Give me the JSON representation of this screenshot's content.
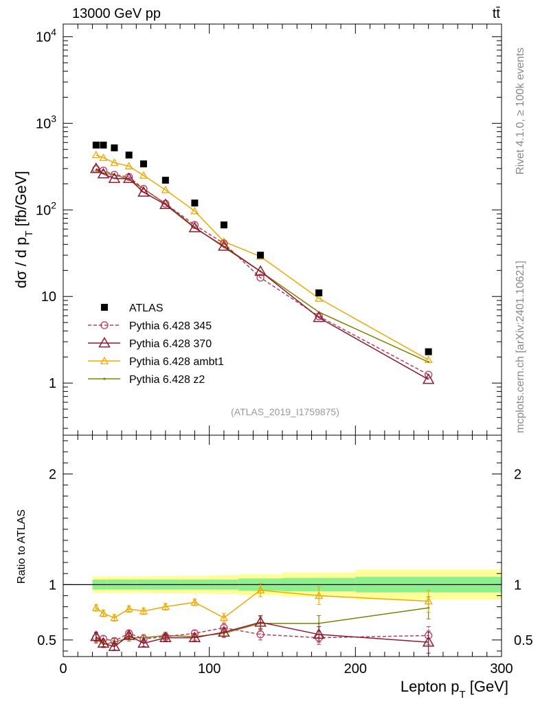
{
  "header": {
    "left": "13000 GeV pp",
    "right": "tt̄"
  },
  "side_labels": {
    "rivet": "Rivet 4.1.0, ≥ 100k events",
    "mcplots": "mcplots.cern.ch [arXiv:2401.10621]"
  },
  "reference": "(ATLAS_2019_I1759875)",
  "colors": {
    "atlas": "#000000",
    "p345": "#b83a5e",
    "p370": "#8b1a2e",
    "ambt1": "#f0a800",
    "z2": "#808000",
    "band_inner": "#8cf08c",
    "band_outer": "#ffff99"
  },
  "chart_data": [
    {
      "type": "scatter",
      "panel": "main",
      "title": "",
      "xlabel": "",
      "ylabel": "dσ / d p_T [fb/GeV]",
      "yscale": "log",
      "ylim": [
        0.25,
        14000
      ],
      "xlim": [
        0,
        300
      ],
      "y_ticks": [
        {
          "value": 1,
          "label": "1"
        },
        {
          "value": 10,
          "label": "10"
        },
        {
          "value": 100,
          "label": "10^2"
        },
        {
          "value": 1000,
          "label": "10^3"
        },
        {
          "value": 10000,
          "label": "10^4"
        }
      ],
      "legend": [
        {
          "key": "atlas",
          "label": "ATLAS"
        },
        {
          "key": "p345",
          "label": "Pythia 6.428 345"
        },
        {
          "key": "p370",
          "label": "Pythia 6.428 370"
        },
        {
          "key": "ambt1",
          "label": "Pythia 6.428 ambt1"
        },
        {
          "key": "z2",
          "label": "Pythia 6.428 z2"
        }
      ],
      "legend_placement": "bottom-left",
      "x": [
        22.5,
        27.5,
        35,
        45,
        55,
        70,
        90,
        110,
        135,
        175,
        250
      ],
      "series": [
        {
          "name": "ATLAS",
          "key": "atlas",
          "values": [
            560,
            560,
            520,
            430,
            340,
            220,
            120,
            67,
            30,
            11,
            2.3
          ]
        },
        {
          "name": "Pythia 6.428 345",
          "key": "p345",
          "values": [
            295,
            285,
            255,
            240,
            175,
            118,
            67,
            41,
            16.5,
            5.9,
            1.25
          ]
        },
        {
          "name": "Pythia 6.428 370",
          "key": "p370",
          "values": [
            300,
            260,
            230,
            230,
            160,
            115,
            62,
            38,
            19.5,
            5.7,
            1.1
          ]
        },
        {
          "name": "Pythia 6.428 ambt1",
          "key": "ambt1",
          "values": [
            430,
            400,
            350,
            320,
            250,
            170,
            97,
            43,
            29,
            9.5,
            1.85
          ]
        },
        {
          "name": "Pythia 6.428 z2",
          "key": "z2",
          "values": [
            285,
            265,
            255,
            225,
            175,
            118,
            63,
            37,
            19.5,
            6.6,
            1.75
          ]
        }
      ]
    },
    {
      "type": "line",
      "panel": "ratio",
      "xlabel": "Lepton p_T [GeV]",
      "ylabel": "Ratio to ATLAS",
      "ylim": [
        0.35,
        2.35
      ],
      "xlim": [
        0,
        300
      ],
      "x_ticks": [
        0,
        100,
        200,
        300
      ],
      "y_ticks": [
        0.5,
        1,
        2
      ],
      "x": [
        22.5,
        27.5,
        35,
        45,
        55,
        70,
        90,
        110,
        135,
        175,
        250
      ],
      "bands": [
        {
          "x0": 20,
          "x1": 25,
          "inner": 0.045,
          "outer": 0.075
        },
        {
          "x0": 25,
          "x1": 30,
          "inner": 0.045,
          "outer": 0.075
        },
        {
          "x0": 30,
          "x1": 40,
          "inner": 0.045,
          "outer": 0.075
        },
        {
          "x0": 40,
          "x1": 50,
          "inner": 0.045,
          "outer": 0.075
        },
        {
          "x0": 50,
          "x1": 60,
          "inner": 0.045,
          "outer": 0.075
        },
        {
          "x0": 60,
          "x1": 80,
          "inner": 0.045,
          "outer": 0.078
        },
        {
          "x0": 80,
          "x1": 100,
          "inner": 0.045,
          "outer": 0.08
        },
        {
          "x0": 100,
          "x1": 120,
          "inner": 0.045,
          "outer": 0.085
        },
        {
          "x0": 120,
          "x1": 150,
          "inner": 0.055,
          "outer": 0.095
        },
        {
          "x0": 150,
          "x1": 200,
          "inner": 0.06,
          "outer": 0.11
        },
        {
          "x0": 200,
          "x1": 300,
          "inner": 0.07,
          "outer": 0.135
        }
      ],
      "series": [
        {
          "name": "Pythia 6.428 345",
          "key": "p345",
          "values": [
            0.52,
            0.51,
            0.49,
            0.56,
            0.51,
            0.53,
            0.56,
            0.61,
            0.55,
            0.52,
            0.54
          ],
          "errors": [
            0.04,
            0.03,
            0.03,
            0.03,
            0.03,
            0.03,
            0.03,
            0.04,
            0.05,
            0.06,
            0.08
          ]
        },
        {
          "name": "Pythia 6.428 370",
          "key": "p370",
          "values": [
            0.53,
            0.47,
            0.44,
            0.54,
            0.47,
            0.52,
            0.52,
            0.57,
            0.66,
            0.55,
            0.48
          ],
          "errors": [
            0.04,
            0.03,
            0.03,
            0.03,
            0.03,
            0.03,
            0.03,
            0.04,
            0.06,
            0.07,
            0.1
          ]
        },
        {
          "name": "Pythia 6.428 ambt1",
          "key": "ambt1",
          "values": [
            0.79,
            0.74,
            0.7,
            0.78,
            0.76,
            0.8,
            0.84,
            0.7,
            0.95,
            0.9,
            0.85
          ],
          "errors": [
            0.03,
            0.03,
            0.03,
            0.03,
            0.03,
            0.03,
            0.03,
            0.04,
            0.06,
            0.08,
            0.1
          ]
        },
        {
          "name": "Pythia 6.428 z2",
          "key": "z2",
          "values": [
            0.51,
            0.46,
            0.48,
            0.52,
            0.52,
            0.54,
            0.53,
            0.56,
            0.65,
            0.65,
            0.79
          ],
          "errors": [
            0.04,
            0.03,
            0.03,
            0.03,
            0.03,
            0.03,
            0.03,
            0.04,
            0.06,
            0.07,
            0.1
          ]
        }
      ]
    }
  ]
}
